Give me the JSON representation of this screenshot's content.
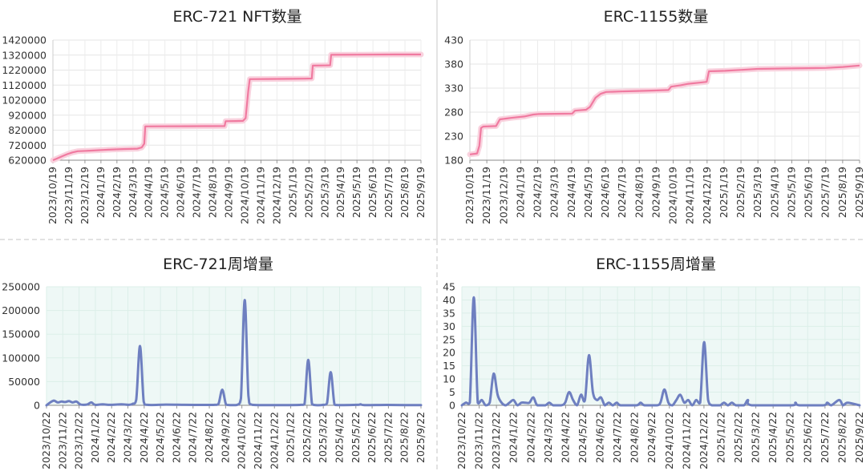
{
  "chart_data": [
    {
      "type": "line",
      "title": "ERC-721 NFT数量",
      "series_color": "#f07aa0",
      "ylim": [
        620000,
        1420000
      ],
      "yticks": [
        620000,
        720000,
        820000,
        920000,
        1020000,
        1120000,
        1220000,
        1320000,
        1420000
      ],
      "xlim": [
        "2023-10-19",
        "2025-09-19"
      ],
      "xtick_labels": [
        "2023/10/19",
        "2023/11/19",
        "2023/12/19",
        "2024/1/19",
        "2024/2/19",
        "2024/3/19",
        "2024/4/19",
        "2024/5/19",
        "2024/6/19",
        "2024/7/19",
        "2024/8/19",
        "2024/9/19",
        "2024/10/19",
        "2024/11/19",
        "2024/12/19",
        "2025/1/19",
        "2025/2/19",
        "2025/3/19",
        "2025/4/19",
        "2025/5/19",
        "2025/6/19",
        "2025/7/19",
        "2025/8/19",
        "2025/9/19"
      ],
      "grid": true,
      "points": [
        [
          "2023-10-19",
          620000
        ],
        [
          "2023-10-26",
          630000
        ],
        [
          "2023-11-05",
          645000
        ],
        [
          "2023-11-15",
          660000
        ],
        [
          "2023-11-25",
          672000
        ],
        [
          "2023-12-05",
          680000
        ],
        [
          "2024-01-01",
          684000
        ],
        [
          "2024-02-01",
          690000
        ],
        [
          "2024-03-01",
          694000
        ],
        [
          "2024-03-28",
          697000
        ],
        [
          "2024-04-05",
          705000
        ],
        [
          "2024-04-10",
          730000
        ],
        [
          "2024-04-12",
          845000
        ],
        [
          "2024-05-15",
          845500
        ],
        [
          "2024-07-01",
          846000
        ],
        [
          "2024-08-15",
          846500
        ],
        [
          "2024-09-10",
          847000
        ],
        [
          "2024-09-12",
          880000
        ],
        [
          "2024-10-01",
          881000
        ],
        [
          "2024-10-15",
          882000
        ],
        [
          "2024-10-20",
          900000
        ],
        [
          "2024-10-25",
          1080000
        ],
        [
          "2024-10-28",
          1160000
        ],
        [
          "2024-12-01",
          1161000
        ],
        [
          "2025-01-15",
          1162000
        ],
        [
          "2025-02-10",
          1163000
        ],
        [
          "2025-02-23",
          1164000
        ],
        [
          "2025-02-25",
          1250000
        ],
        [
          "2025-03-20",
          1251000
        ],
        [
          "2025-03-30",
          1252000
        ],
        [
          "2025-04-01",
          1322000
        ],
        [
          "2025-06-01",
          1323000
        ],
        [
          "2025-08-01",
          1324000
        ],
        [
          "2025-09-19",
          1324000
        ]
      ]
    },
    {
      "type": "line",
      "title": "ERC-1155数量",
      "series_color": "#f07aa0",
      "ylim": [
        180,
        430
      ],
      "yticks": [
        180,
        230,
        280,
        330,
        380,
        430
      ],
      "xlim": [
        "2023-10-19",
        "2025-09-19"
      ],
      "xtick_labels": [
        "2023/10/19",
        "2023/11/19",
        "2023/12/19",
        "2024/1/19",
        "2024/2/19",
        "2024/3/19",
        "2024/4/19",
        "2024/5/19",
        "2024/6/19",
        "2024/7/19",
        "2024/8/19",
        "2024/9/19",
        "2024/10/19",
        "2024/11/19",
        "2024/12/19",
        "2025/1/19",
        "2025/2/19",
        "2025/3/19",
        "2025/4/19",
        "2025/5/19",
        "2025/6/19",
        "2025/7/19",
        "2025/8/19",
        "2025/9/19"
      ],
      "grid": true,
      "points": [
        [
          "2023-10-19",
          192
        ],
        [
          "2023-11-01",
          194
        ],
        [
          "2023-11-05",
          210
        ],
        [
          "2023-11-08",
          247
        ],
        [
          "2023-11-12",
          250
        ],
        [
          "2023-12-05",
          251
        ],
        [
          "2023-12-12",
          265
        ],
        [
          "2024-01-01",
          268
        ],
        [
          "2024-01-25",
          271
        ],
        [
          "2024-02-10",
          275
        ],
        [
          "2024-02-20",
          276
        ],
        [
          "2024-04-20",
          277
        ],
        [
          "2024-04-25",
          283
        ],
        [
          "2024-05-15",
          285
        ],
        [
          "2024-05-22",
          291
        ],
        [
          "2024-06-01",
          310
        ],
        [
          "2024-06-10",
          318
        ],
        [
          "2024-06-20",
          322
        ],
        [
          "2024-07-15",
          323
        ],
        [
          "2024-08-15",
          324
        ],
        [
          "2024-09-15",
          325
        ],
        [
          "2024-10-10",
          326
        ],
        [
          "2024-10-15",
          333
        ],
        [
          "2024-11-01",
          336
        ],
        [
          "2024-11-15",
          339
        ],
        [
          "2024-12-10",
          342
        ],
        [
          "2024-12-18",
          343
        ],
        [
          "2024-12-22",
          365
        ],
        [
          "2025-01-20",
          366
        ],
        [
          "2025-02-20",
          368
        ],
        [
          "2025-03-20",
          370
        ],
        [
          "2025-05-20",
          371
        ],
        [
          "2025-07-20",
          372
        ],
        [
          "2025-08-20",
          374
        ],
        [
          "2025-09-19",
          377
        ]
      ]
    },
    {
      "type": "area",
      "title": "ERC-721周增量",
      "series_color": "#6e7fc0",
      "ylim": [
        0,
        250000
      ],
      "yticks": [
        0,
        50000,
        100000,
        150000,
        200000,
        250000
      ],
      "xlim": [
        "2023-10-22",
        "2025-09-22"
      ],
      "xtick_labels": [
        "2023/10/22",
        "2023/11/22",
        "2023/12/22",
        "2024/1/22",
        "2024/2/22",
        "2024/3/22",
        "2024/4/22",
        "2024/5/22",
        "2024/6/22",
        "2024/7/22",
        "2024/8/22",
        "2024/9/22",
        "2024/10/22",
        "2024/11/22",
        "2024/12/22",
        "2025/1/22",
        "2025/2/22",
        "2025/3/22",
        "2025/4/22",
        "2025/5/22",
        "2025/6/22",
        "2025/7/22",
        "2025/8/22",
        "2025/9/22"
      ],
      "grid": true,
      "points": [
        [
          "2023-10-22",
          0
        ],
        [
          "2023-10-29",
          6000
        ],
        [
          "2023-11-05",
          10000
        ],
        [
          "2023-11-12",
          6000
        ],
        [
          "2023-11-19",
          8000
        ],
        [
          "2023-11-26",
          7000
        ],
        [
          "2023-12-03",
          9000
        ],
        [
          "2023-12-10",
          6000
        ],
        [
          "2023-12-17",
          8000
        ],
        [
          "2023-12-24",
          2000
        ],
        [
          "2023-12-31",
          1000
        ],
        [
          "2024-01-07",
          2000
        ],
        [
          "2024-01-14",
          6000
        ],
        [
          "2024-01-21",
          1000
        ],
        [
          "2024-02-04",
          2000
        ],
        [
          "2024-02-18",
          1000
        ],
        [
          "2024-03-10",
          2000
        ],
        [
          "2024-03-24",
          1000
        ],
        [
          "2024-03-31",
          3000
        ],
        [
          "2024-04-07",
          12000
        ],
        [
          "2024-04-14",
          125000
        ],
        [
          "2024-04-21",
          8000
        ],
        [
          "2024-04-28",
          1000
        ],
        [
          "2024-06-02",
          1500
        ],
        [
          "2024-07-07",
          1000
        ],
        [
          "2024-08-18",
          800
        ],
        [
          "2024-09-01",
          1000
        ],
        [
          "2024-09-08",
          3000
        ],
        [
          "2024-09-15",
          33000
        ],
        [
          "2024-09-22",
          2000
        ],
        [
          "2024-09-29",
          500
        ],
        [
          "2024-10-13",
          1000
        ],
        [
          "2024-10-20",
          15000
        ],
        [
          "2024-10-27",
          222000
        ],
        [
          "2024-11-03",
          20000
        ],
        [
          "2024-11-10",
          1000
        ],
        [
          "2024-12-15",
          500
        ],
        [
          "2025-01-19",
          500
        ],
        [
          "2025-02-09",
          1000
        ],
        [
          "2025-02-16",
          3000
        ],
        [
          "2025-02-23",
          96000
        ],
        [
          "2025-03-02",
          3000
        ],
        [
          "2025-03-09",
          500
        ],
        [
          "2025-03-23",
          1000
        ],
        [
          "2025-03-30",
          4000
        ],
        [
          "2025-04-06",
          70000
        ],
        [
          "2025-04-13",
          2000
        ],
        [
          "2025-04-20",
          500
        ],
        [
          "2025-05-25",
          1000
        ],
        [
          "2025-06-01",
          2000
        ],
        [
          "2025-06-08",
          500
        ],
        [
          "2025-07-20",
          800
        ],
        [
          "2025-08-24",
          500
        ],
        [
          "2025-09-22",
          500
        ]
      ]
    },
    {
      "type": "area",
      "title": "ERC-1155周增量",
      "series_color": "#6e7fc0",
      "ylim": [
        0,
        45
      ],
      "yticks": [
        0,
        5,
        10,
        15,
        20,
        25,
        30,
        35,
        40,
        45
      ],
      "xlim": [
        "2023-10-22",
        "2025-09-22"
      ],
      "xtick_labels": [
        "2023/10/22",
        "2023/11/22",
        "2023/12/22",
        "2024/1/22",
        "2024/2/22",
        "2024/3/22",
        "2024/4/22",
        "2024/5/22",
        "2024/6/22",
        "2024/7/22",
        "2024/8/22",
        "2024/9/22",
        "2024/10/22",
        "2024/11/22",
        "2024/12/22",
        "2025/1/22",
        "2025/2/22",
        "2025/3/22",
        "2025/4/22",
        "2025/5/22",
        "2025/6/22",
        "2025/7/22",
        "2025/8/22",
        "2025/9/22"
      ],
      "grid": true,
      "points": [
        [
          "2023-10-22",
          0
        ],
        [
          "2023-10-29",
          1
        ],
        [
          "2023-11-05",
          1
        ],
        [
          "2023-11-12",
          41
        ],
        [
          "2023-11-19",
          1
        ],
        [
          "2023-11-26",
          2
        ],
        [
          "2023-12-03",
          0
        ],
        [
          "2023-12-10",
          1
        ],
        [
          "2023-12-17",
          12
        ],
        [
          "2023-12-24",
          4
        ],
        [
          "2023-12-31",
          1
        ],
        [
          "2024-01-07",
          0
        ],
        [
          "2024-01-14",
          1
        ],
        [
          "2024-01-21",
          2
        ],
        [
          "2024-01-28",
          0
        ],
        [
          "2024-02-04",
          1
        ],
        [
          "2024-02-11",
          1
        ],
        [
          "2024-02-18",
          1
        ],
        [
          "2024-02-25",
          3
        ],
        [
          "2024-03-03",
          0
        ],
        [
          "2024-03-17",
          0
        ],
        [
          "2024-03-24",
          1
        ],
        [
          "2024-03-31",
          0
        ],
        [
          "2024-04-14",
          0
        ],
        [
          "2024-04-21",
          1
        ],
        [
          "2024-04-28",
          5
        ],
        [
          "2024-05-05",
          2
        ],
        [
          "2024-05-12",
          0
        ],
        [
          "2024-05-19",
          4
        ],
        [
          "2024-05-26",
          2
        ],
        [
          "2024-06-02",
          19
        ],
        [
          "2024-06-09",
          5
        ],
        [
          "2024-06-16",
          2
        ],
        [
          "2024-06-23",
          3
        ],
        [
          "2024-06-30",
          0
        ],
        [
          "2024-07-07",
          1
        ],
        [
          "2024-07-14",
          0
        ],
        [
          "2024-07-21",
          1
        ],
        [
          "2024-07-28",
          0
        ],
        [
          "2024-08-25",
          0
        ],
        [
          "2024-09-01",
          1
        ],
        [
          "2024-09-08",
          0
        ],
        [
          "2024-09-29",
          0
        ],
        [
          "2024-10-06",
          1
        ],
        [
          "2024-10-13",
          6
        ],
        [
          "2024-10-20",
          1
        ],
        [
          "2024-10-27",
          0
        ],
        [
          "2024-11-03",
          2
        ],
        [
          "2024-11-10",
          4
        ],
        [
          "2024-11-17",
          1
        ],
        [
          "2024-11-24",
          2
        ],
        [
          "2024-12-01",
          0
        ],
        [
          "2024-12-08",
          2
        ],
        [
          "2024-12-15",
          1
        ],
        [
          "2024-12-22",
          24
        ],
        [
          "2024-12-29",
          2
        ],
        [
          "2025-01-05",
          0
        ],
        [
          "2025-01-19",
          0
        ],
        [
          "2025-01-26",
          1
        ],
        [
          "2025-02-02",
          0
        ],
        [
          "2025-02-09",
          1
        ],
        [
          "2025-02-16",
          0
        ],
        [
          "2025-03-02",
          0
        ],
        [
          "2025-03-09",
          2
        ],
        [
          "2025-03-16",
          0
        ],
        [
          "2025-05-25",
          0
        ],
        [
          "2025-06-01",
          1
        ],
        [
          "2025-06-08",
          0
        ],
        [
          "2025-07-20",
          0
        ],
        [
          "2025-07-27",
          1
        ],
        [
          "2025-08-03",
          0
        ],
        [
          "2025-08-17",
          2
        ],
        [
          "2025-08-24",
          0
        ],
        [
          "2025-09-01",
          1
        ],
        [
          "2025-09-22",
          0
        ]
      ]
    }
  ]
}
